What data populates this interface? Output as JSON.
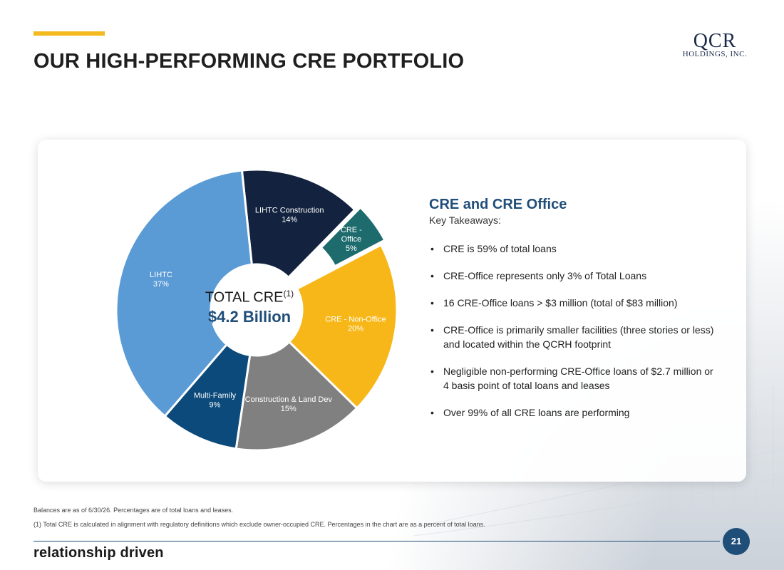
{
  "header": {
    "title": "OUR HIGH-PERFORMING CRE PORTFOLIO",
    "logo_main": "QCR",
    "logo_sub": "HOLDINGS, INC."
  },
  "center": {
    "label": "TOTAL CRE",
    "label_sup": "(1)",
    "value": "$4.2 Billion"
  },
  "chart_data": {
    "type": "pie",
    "title": "",
    "slices": [
      {
        "name": "LIHTC Construction",
        "value": 14,
        "label": "14%",
        "color": "#13233f",
        "label_color": "#ffffff"
      },
      {
        "name": "CRE - Office",
        "value": 5,
        "label": "5%",
        "color": "#1e6b6e",
        "label_color": "#ffffff",
        "exploded": true
      },
      {
        "name": "CRE - Non-Office",
        "value": 20,
        "label": "20%",
        "color": "#f7b718",
        "label_color": "#ffffff"
      },
      {
        "name": "Construction & Land Dev",
        "value": 15,
        "label": "15%",
        "color": "#808080",
        "label_color": "#ffffff"
      },
      {
        "name": "Multi-Family",
        "value": 9,
        "label": "9%",
        "color": "#0b4a7a",
        "label_color": "#ffffff"
      },
      {
        "name": "LIHTC",
        "value": 37,
        "label": "37%",
        "color": "#5b9bd5",
        "label_color": "#ffffff"
      }
    ],
    "legend": "none"
  },
  "takeaways": {
    "title": "CRE and CRE Office",
    "subtitle": "Key Takeaways:",
    "items": [
      "CRE is 59% of total loans",
      "CRE-Office represents only 3% of Total Loans",
      "16 CRE-Office loans > $3 million (total of $83 million)",
      "CRE-Office is primarily smaller facilities (three stories or less) and located within the QCRH footprint",
      "Negligible non-performing CRE-Office loans of $2.7 million or 4 basis point of total loans and leases",
      "Over 99% of all CRE loans are performing"
    ]
  },
  "footer": {
    "note1": "Balances are as of 6/30/26. Percentages are of total loans and leases.",
    "note2": "(1)  Total CRE is calculated in alignment with regulatory definitions which exclude owner-occupied CRE. Percentages in the chart are as a percent of total loans.",
    "page_number": "21",
    "tagline": "relationship driven"
  }
}
